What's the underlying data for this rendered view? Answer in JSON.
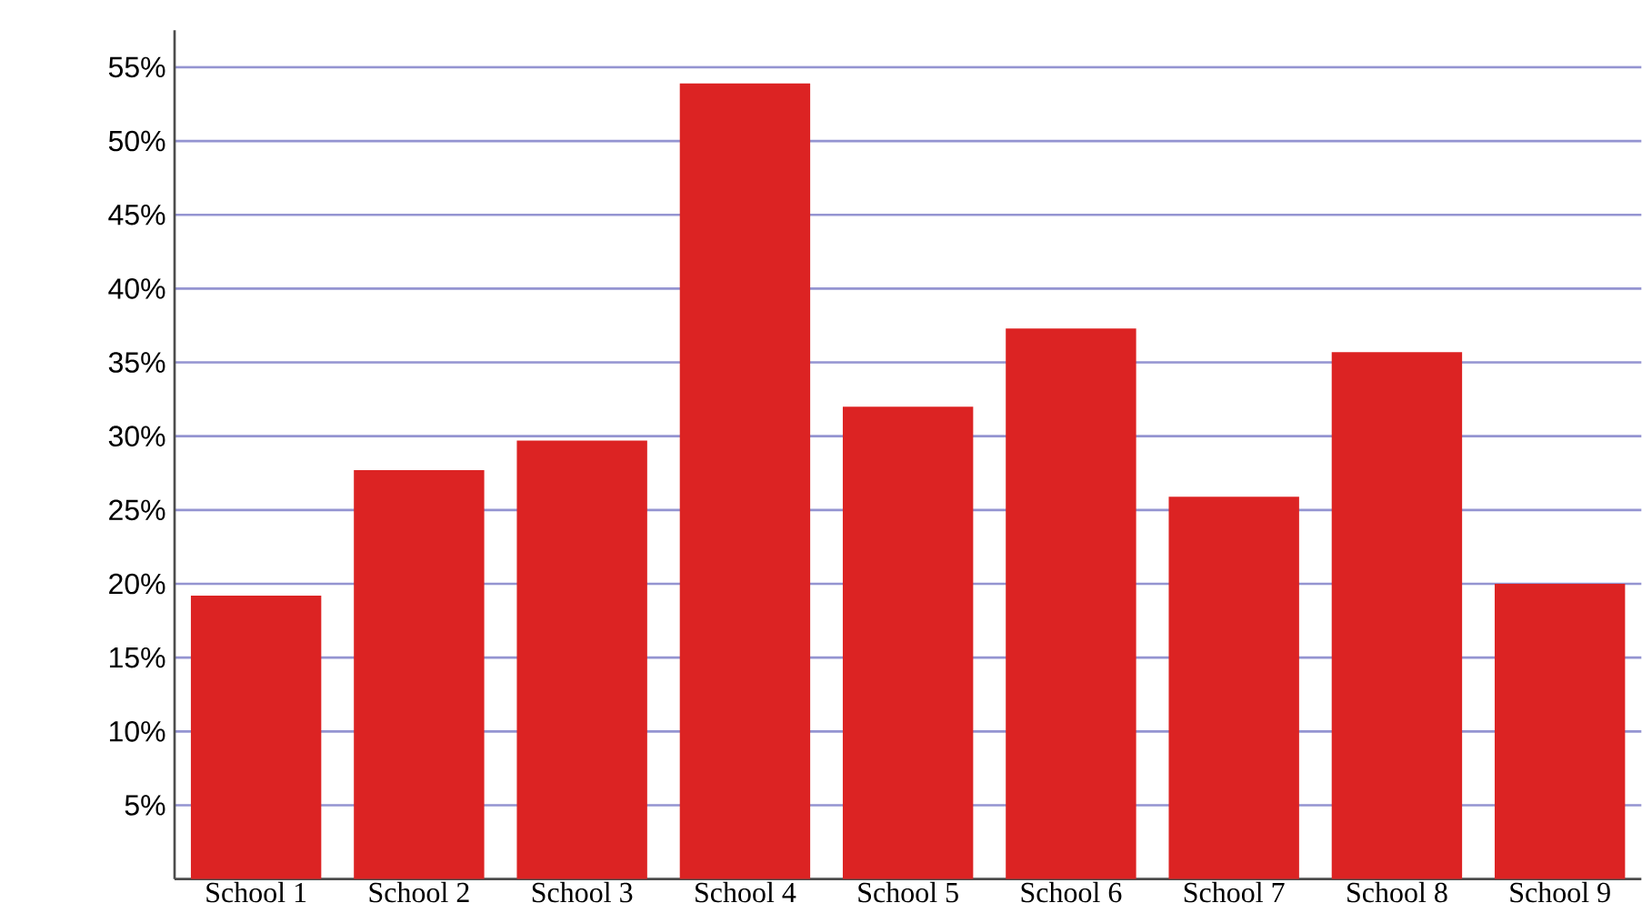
{
  "chart_data": {
    "type": "bar",
    "categories": [
      "School 1",
      "School 2",
      "School 3",
      "School 4",
      "School 5",
      "School 6",
      "School 7",
      "School 8",
      "School 9"
    ],
    "values": [
      19.2,
      27.7,
      29.7,
      53.9,
      32.0,
      37.3,
      25.9,
      35.7,
      20.0
    ],
    "color": "#dc2323",
    "ylim": [
      0,
      57.5
    ],
    "yticks": [
      {
        "value": 5,
        "label": "5%"
      },
      {
        "value": 10,
        "label": "10%"
      },
      {
        "value": 15,
        "label": "15%"
      },
      {
        "value": 20,
        "label": "20%"
      },
      {
        "value": 25,
        "label": "25%"
      },
      {
        "value": 30,
        "label": "30%"
      },
      {
        "value": 35,
        "label": "35%"
      },
      {
        "value": 40,
        "label": "40%"
      },
      {
        "value": 45,
        "label": "45%"
      },
      {
        "value": 50,
        "label": "50%"
      },
      {
        "value": 55,
        "label": "55%"
      }
    ],
    "grid": "y"
  }
}
